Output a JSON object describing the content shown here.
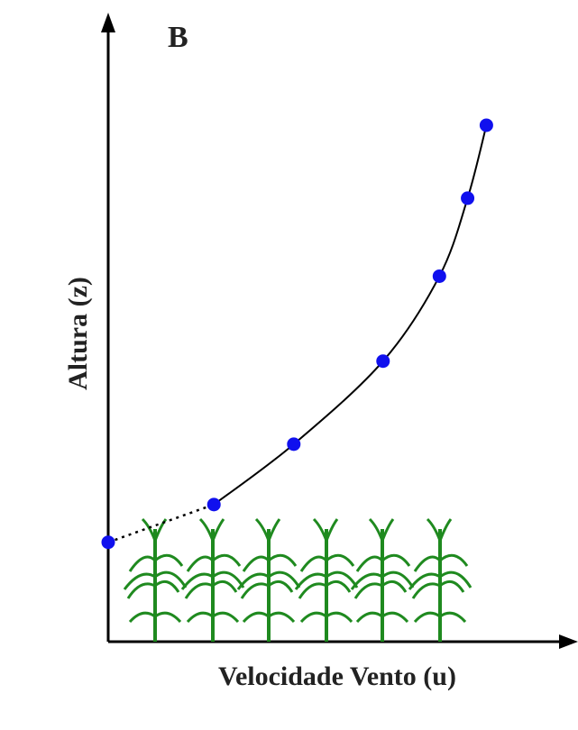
{
  "chart_data": {
    "type": "line",
    "panel_label": "B",
    "xlabel": "Velocidade Vento (u)",
    "ylabel": "Altura (z)",
    "xlim": [
      0,
      1
    ],
    "ylim": [
      0,
      1
    ],
    "grid": false,
    "axis_tick_labels": false,
    "series": [
      {
        "color": "#1010ee",
        "x": [
          0.225,
          0.395,
          0.585,
          0.705,
          0.765,
          0.805
        ],
        "y": [
          0.218,
          0.314,
          0.446,
          0.581,
          0.705,
          0.821
        ]
      }
    ],
    "extrapolation": {
      "style": "dotted",
      "x": [
        0.0,
        0.225
      ],
      "y": [
        0.158,
        0.218
      ]
    },
    "vegetation_color": "#1f8a1f"
  }
}
